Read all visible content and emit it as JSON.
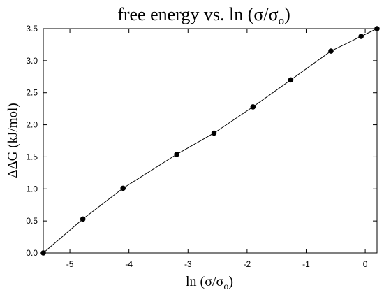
{
  "chart_data": {
    "type": "line",
    "title": {
      "main": "free energy vs. ln (",
      "sym1": "σ",
      "sep": "/",
      "sym2": "σ",
      "sub": "o",
      "close": ")"
    },
    "xlabel": {
      "main": "ln (",
      "sym1": "σ",
      "sep": "/",
      "sym2": "σ",
      "sub": "o",
      "close": ")"
    },
    "ylabel": {
      "main": "ΔΔG (kJ/mol)"
    },
    "xlim": [
      -5.45,
      0.2
    ],
    "ylim": [
      0.0,
      3.5
    ],
    "x_ticks": [
      -5,
      -4,
      -3,
      -2,
      -1,
      0
    ],
    "x_tick_labels": [
      "-5",
      "-4",
      "-3",
      "-2",
      "-1",
      "0"
    ],
    "y_ticks": [
      0.0,
      0.5,
      1.0,
      1.5,
      2.0,
      2.5,
      3.0,
      3.5
    ],
    "y_tick_labels": [
      "0.0",
      "0.5",
      "1.0",
      "1.5",
      "2.0",
      "2.5",
      "3.0",
      "3.5"
    ],
    "grid": false,
    "series": [
      {
        "x": [
          -5.45,
          -4.78,
          -4.1,
          -3.19,
          -2.56,
          -1.9,
          -1.26,
          -0.58,
          -0.07,
          0.2
        ],
        "y": [
          0.0,
          0.53,
          1.01,
          1.54,
          1.87,
          2.28,
          2.7,
          3.15,
          3.38,
          3.5
        ],
        "color": "#000000",
        "marker": "circle"
      }
    ]
  }
}
